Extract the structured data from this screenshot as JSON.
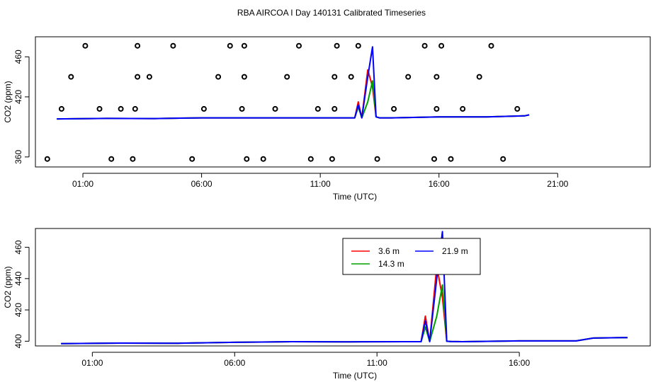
{
  "page_title": "RBA AIRCOA I  Day 140131  Calibrated Timeseries",
  "chart_data": [
    {
      "type": "line",
      "panel": "top",
      "xlabel": "Time (UTC)",
      "ylabel": "CO2 (ppm)",
      "x_unit": "hours UTC",
      "xlim": [
        -1.0,
        24.9
      ],
      "ylim": [
        350,
        480
      ],
      "x_ticks": [
        {
          "value": 1,
          "label": "01:00"
        },
        {
          "value": 6,
          "label": "06:00"
        },
        {
          "value": 11,
          "label": "11:00"
        },
        {
          "value": 16,
          "label": "16:00"
        },
        {
          "value": 21,
          "label": "21:00"
        }
      ],
      "y_ticks": [
        {
          "value": 360,
          "label": "360"
        },
        {
          "value": 420,
          "label": "420"
        },
        {
          "value": 460,
          "label": "460"
        }
      ],
      "grid": false,
      "series": [
        {
          "name": "3.6 m",
          "color": "#ff0000",
          "x": [
            -0.1,
            2,
            4,
            6,
            8,
            10,
            12,
            12.45,
            12.6,
            12.75,
            13.0,
            13.2,
            13.35,
            13.5,
            14,
            16,
            18,
            19.6,
            19.8
          ],
          "y": [
            398,
            398.5,
            398.3,
            399,
            399,
            399,
            399,
            399,
            415,
            399,
            447,
            430,
            400,
            399,
            399,
            400,
            400,
            401,
            402
          ]
        },
        {
          "name": "14.3 m",
          "color": "#00a000",
          "x": [
            -0.1,
            2,
            4,
            6,
            8,
            10,
            12,
            12.45,
            12.6,
            12.75,
            13.0,
            13.2,
            13.35,
            13.5,
            14,
            16,
            18,
            19.6,
            19.8
          ],
          "y": [
            398,
            398.5,
            398.3,
            399,
            399,
            399,
            399,
            399,
            410,
            399,
            415,
            436,
            400,
            399,
            399,
            400,
            400,
            401,
            402
          ]
        },
        {
          "name": "21.9 m",
          "color": "#0000ff",
          "x": [
            -0.1,
            2,
            4,
            6,
            8,
            10,
            12,
            12.45,
            12.6,
            12.75,
            13.0,
            13.2,
            13.35,
            13.5,
            14,
            16,
            18,
            19.6,
            19.8
          ],
          "y": [
            398,
            398.5,
            398.3,
            399,
            399,
            399,
            399,
            399,
            412,
            399,
            440,
            470,
            400,
            399,
            399,
            400,
            400,
            401,
            402
          ]
        }
      ],
      "markers": {
        "symbol": "open circle",
        "color": "#000000",
        "x": [
          -0.5,
          0.1,
          0.5,
          1.1,
          1.7,
          2.2,
          2.6,
          3.1,
          3.2,
          3.3,
          3.3,
          3.8,
          4.8,
          5.6,
          6.1,
          6.7,
          7.2,
          7.7,
          7.8,
          7.8,
          7.9,
          8.6,
          9.1,
          9.6,
          10.1,
          10.6,
          10.9,
          11.5,
          11.6,
          11.6,
          11.7,
          12.3,
          12.6,
          13.4,
          14.1,
          14.7,
          15.4,
          15.8,
          15.9,
          15.9,
          16.1,
          16.5,
          17.0,
          17.7,
          18.2,
          18.7,
          19.3
        ],
        "y": [
          358,
          408,
          440,
          471,
          408,
          358,
          408,
          358,
          408,
          440,
          471,
          440,
          471,
          358,
          408,
          440,
          471,
          408,
          440,
          471,
          358,
          358,
          408,
          440,
          471,
          358,
          408,
          358,
          408,
          440,
          471,
          440,
          471,
          358,
          408,
          440,
          471,
          358,
          408,
          440,
          471,
          358,
          408,
          440,
          471,
          358,
          408
        ]
      }
    },
    {
      "type": "line",
      "panel": "bottom",
      "xlabel": "Time (UTC)",
      "ylabel": "CO2 (ppm)",
      "x_unit": "hours UTC",
      "xlim": [
        -1.0,
        20.6
      ],
      "ylim": [
        397,
        472
      ],
      "x_ticks": [
        {
          "value": 1,
          "label": "01:00"
        },
        {
          "value": 6,
          "label": "06:00"
        },
        {
          "value": 11,
          "label": "11:00"
        },
        {
          "value": 16,
          "label": "16:00"
        }
      ],
      "y_ticks": [
        {
          "value": 400,
          "label": "400"
        },
        {
          "value": 420,
          "label": "420"
        },
        {
          "value": 440,
          "label": "440"
        },
        {
          "value": 460,
          "label": "460"
        }
      ],
      "grid": false,
      "legend": {
        "placement": "top-right",
        "entries": [
          {
            "label": "3.6 m",
            "color": "#ff0000"
          },
          {
            "label": "21.9 m",
            "color": "#0000ff"
          },
          {
            "label": "14.3 m",
            "color": "#00a000"
          }
        ]
      },
      "series": [
        {
          "name": "3.6 m",
          "color": "#ff0000",
          "x": [
            -0.1,
            2,
            4,
            6,
            8,
            10,
            12,
            12.55,
            12.7,
            12.85,
            13.1,
            13.3,
            13.45,
            13.6,
            14,
            16,
            18,
            18.6,
            19.6,
            19.8
          ],
          "y": [
            398.5,
            398.8,
            398.7,
            399.3,
            399.7,
            399.6,
            399.7,
            399.7,
            416,
            399.8,
            448,
            428,
            400,
            399.8,
            399.7,
            400.2,
            400.2,
            402,
            402.3,
            402.3
          ]
        },
        {
          "name": "14.3 m",
          "color": "#00a000",
          "x": [
            -0.1,
            2,
            4,
            6,
            8,
            10,
            12,
            12.55,
            12.7,
            12.85,
            13.1,
            13.3,
            13.45,
            13.6,
            14,
            16,
            18,
            18.6,
            19.6,
            19.8
          ],
          "y": [
            398.5,
            398.8,
            398.7,
            399.3,
            399.7,
            399.6,
            399.7,
            399.7,
            409,
            399.8,
            416,
            436,
            400,
            399.8,
            399.7,
            400.2,
            400.2,
            402,
            402.3,
            402.3
          ]
        },
        {
          "name": "21.9 m",
          "color": "#0000ff",
          "x": [
            -0.1,
            2,
            4,
            6,
            8,
            10,
            12,
            12.55,
            12.7,
            12.85,
            13.1,
            13.3,
            13.45,
            13.6,
            14,
            16,
            18,
            18.6,
            19.6,
            19.8
          ],
          "y": [
            398.5,
            398.8,
            398.7,
            399.3,
            399.7,
            399.6,
            399.7,
            399.7,
            413,
            399.8,
            440,
            470,
            400,
            399.8,
            399.7,
            400.2,
            400.2,
            402,
            402.3,
            402.3
          ]
        }
      ]
    }
  ]
}
